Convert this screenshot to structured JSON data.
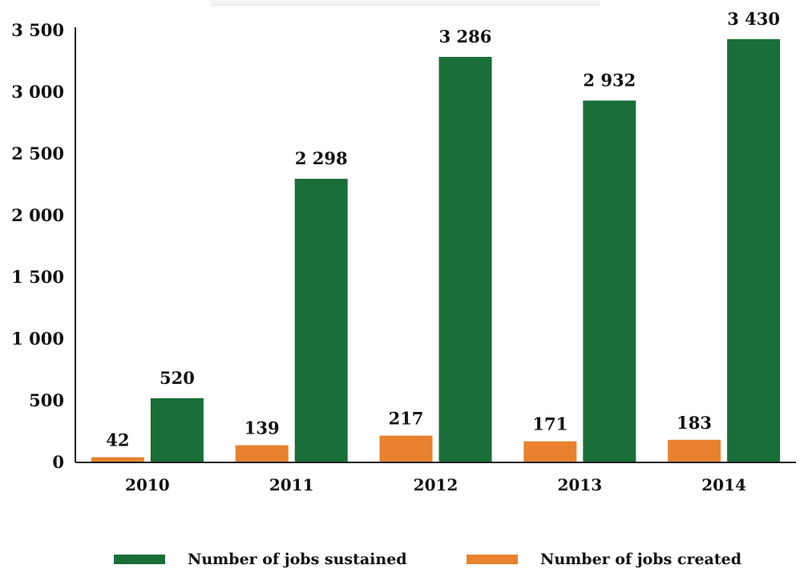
{
  "chart_data": {
    "type": "bar",
    "categories": [
      "2010",
      "2011",
      "2012",
      "2013",
      "2014"
    ],
    "series": [
      {
        "name": "Number of jobs created",
        "color": "#E8822E",
        "values": [
          42,
          139,
          217,
          171,
          183
        ]
      },
      {
        "name": "Number of jobs sustained",
        "color": "#1A6E38",
        "values": [
          520,
          2298,
          3286,
          2932,
          3430
        ]
      }
    ],
    "data_labels": {
      "created": [
        "42",
        "139",
        "217",
        "171",
        "183"
      ],
      "sustained": [
        "520",
        "2 298",
        "3 286",
        "2 932",
        "3 430"
      ]
    },
    "y_ticks": [
      {
        "value": 0,
        "label": "0"
      },
      {
        "value": 500,
        "label": "500"
      },
      {
        "value": 1000,
        "label": "1 000"
      },
      {
        "value": 1500,
        "label": "1 500"
      },
      {
        "value": 2000,
        "label": "2 000"
      },
      {
        "value": 2500,
        "label": "2 500"
      },
      {
        "value": 3000,
        "label": "3 000"
      },
      {
        "value": 3500,
        "label": "3 500"
      }
    ],
    "ylim": [
      0,
      3500
    ],
    "title": "",
    "xlabel": "",
    "ylabel": "",
    "grid": false,
    "legend_position": "bottom"
  },
  "legend": {
    "sustained_label": "Number of jobs sustained",
    "created_label": "Number of jobs created"
  }
}
